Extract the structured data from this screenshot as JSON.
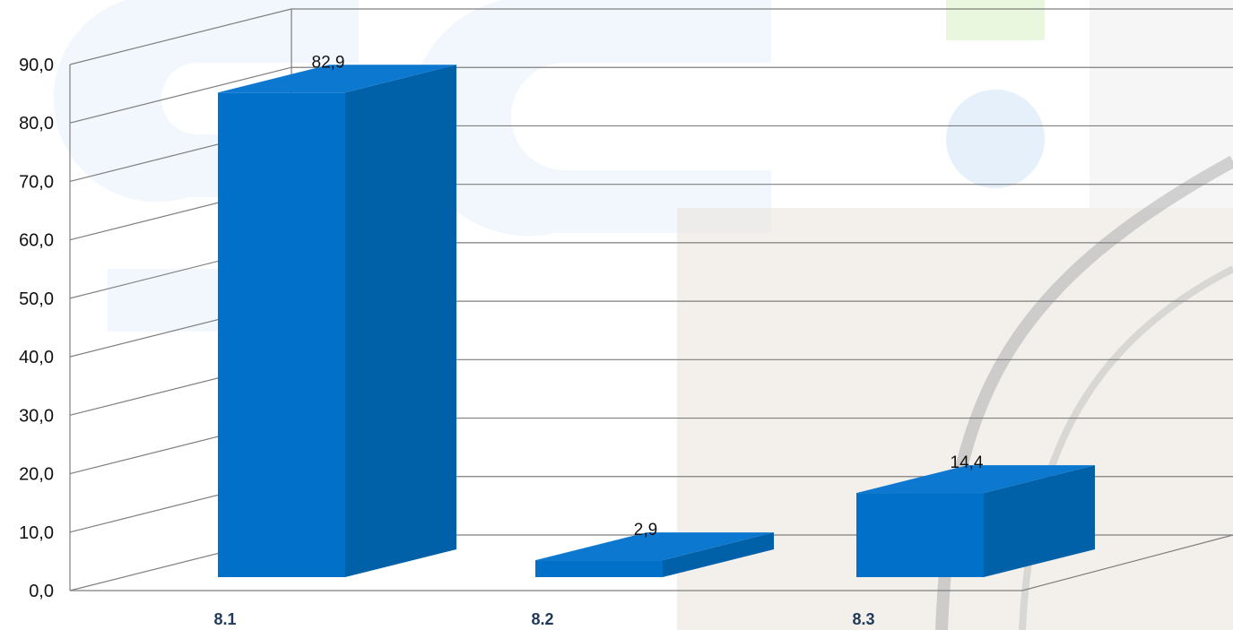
{
  "chart_data": {
    "type": "bar",
    "title": "",
    "xlabel": "",
    "ylabel": "",
    "categories": [
      "8.1",
      "8.2",
      "8.3"
    ],
    "series": [
      {
        "values": [
          82.9,
          2.9,
          14.4
        ],
        "data_labels": [
          "82,9",
          "2,9",
          "14,4"
        ]
      }
    ],
    "ylim": [
      0,
      90
    ],
    "y_ticks": [
      0,
      10,
      20,
      30,
      40,
      50,
      60,
      70,
      80,
      90
    ],
    "y_tick_labels": [
      "0,0",
      "10,0",
      "20,0",
      "30,0",
      "40,0",
      "50,0",
      "60,0",
      "70,0",
      "80,0",
      "90,0"
    ],
    "grid": true,
    "legend": "none",
    "style": "3d-column",
    "colors": {
      "bar_front": "#0070c8",
      "bar_side": "#0060a8",
      "bar_top": "#0d78d0",
      "grid": "#7f7f7f",
      "category_text": "#1f3a5a"
    }
  }
}
